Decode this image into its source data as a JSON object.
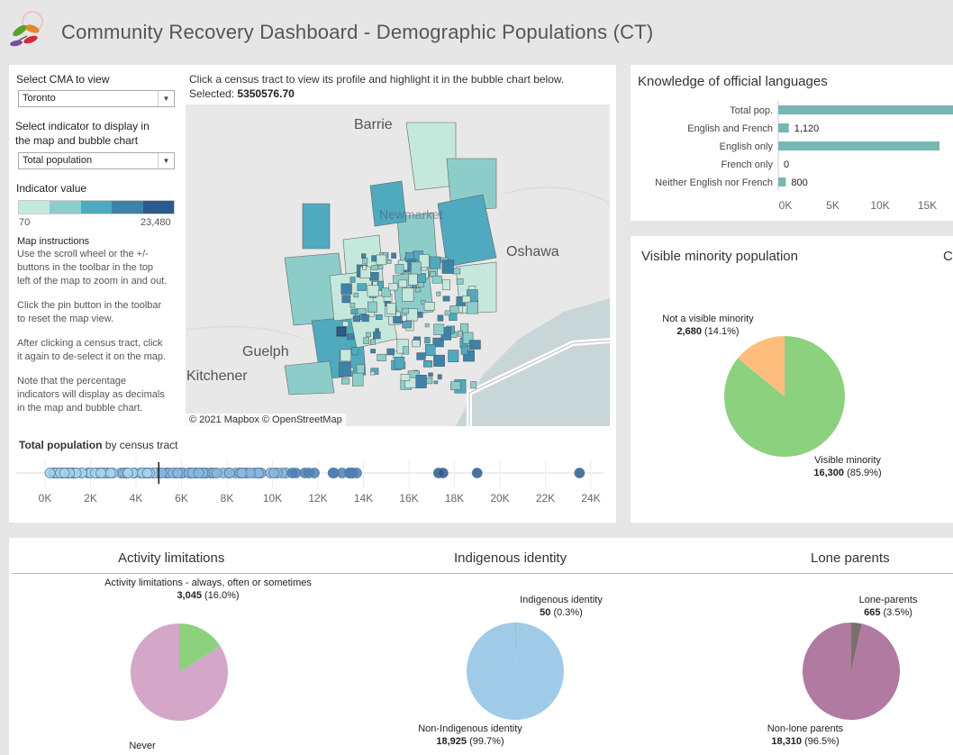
{
  "header": {
    "title": "Community Recovery Dashboard - Demographic Populations (CT)",
    "logo_icon": "leaf-logo-icon"
  },
  "controls": {
    "cma_label": "Select CMA to view",
    "cma_value": "Toronto",
    "indicator_label_1": "Select indicator to display in",
    "indicator_label_2": "the map and bubble chart",
    "indicator_value": "Total population",
    "legend_title": "Indicator value",
    "legend_min": "70",
    "legend_max": "23,480",
    "legend_colors": [
      "#c5e8dc",
      "#8ccdc9",
      "#4fa9bf",
      "#3e82aa",
      "#2d5a8c"
    ]
  },
  "instructions": {
    "title": "Map instructions",
    "lines_1": [
      "Use the scroll wheel or the +/-",
      "buttons in the toolbar in the top",
      "left of the map to zoom in and out."
    ],
    "lines_2": [
      "Click the pin button in the toolbar",
      "to reset the map view."
    ],
    "lines_3": [
      "After clicking a census tract, click",
      "it again to de-select it on the map."
    ],
    "lines_4": [
      "Note that the percentage",
      "indicators will display as decimals",
      "in the map and bubble chart."
    ]
  },
  "map": {
    "instruction": "Click a census tract to view its profile and highlight it in the bubble chart below.",
    "selected_label": "Selected:",
    "selected_value": "5350576.70",
    "cities": {
      "barrie": "Barrie",
      "newmarket": "Newmarket",
      "oshawa": "Oshawa",
      "guelph": "Guelph",
      "kitchener": "Kitchener"
    },
    "attribution": "© 2021 Mapbox © OpenStreetMap"
  },
  "bubble": {
    "title_bold": "Total population",
    "title_rest": " by census tract",
    "ticks": [
      "0K",
      "2K",
      "4K",
      "6K",
      "8K",
      "10K",
      "12K",
      "14K",
      "16K",
      "18K",
      "20K",
      "22K",
      "24K"
    ],
    "xlim": [
      0,
      24000
    ],
    "selected_value": 5000,
    "outliers": [
      17300,
      17500,
      19000,
      23500
    ]
  },
  "languages": {
    "title": "Knowledge of official languages",
    "categories": [
      "Total pop.",
      "English and French",
      "English only",
      "French only",
      "Neither English nor French"
    ],
    "values": [
      18975,
      1120,
      17055,
      0,
      800
    ],
    "labels": [
      "",
      "1,120",
      "",
      "0",
      "800"
    ],
    "ticks": [
      "0K",
      "5K",
      "10K",
      "15K"
    ],
    "bar_color": "#76b7b2"
  },
  "visible_minority": {
    "title": "Visible minority population",
    "cut_title": "Ca",
    "slices": [
      {
        "name": "Not a visible minority",
        "value": 2680,
        "value_text": "2,680",
        "pct": " (14.1%)",
        "color": "#ffbe7d"
      },
      {
        "name": "Visible minority",
        "value": 16300,
        "value_text": "16,300",
        "pct": " (85.9%)",
        "color": "#8cd17d"
      }
    ]
  },
  "activity": {
    "title": "Activity limitations",
    "slices": [
      {
        "name": "Activity limitations - always, often or sometimes",
        "value": 3045,
        "value_text": "3,045",
        "pct": " (16.0%)",
        "color": "#8cd17d"
      },
      {
        "name": "Never",
        "value": 15930,
        "value_text": "",
        "pct": "",
        "color": "#d4a6c8"
      }
    ]
  },
  "indigenous": {
    "title": "Indigenous identity",
    "slices": [
      {
        "name": "Indigenous identity",
        "value": 50,
        "value_text": "50",
        "pct": " (0.3%)",
        "color": "#f28e2b"
      },
      {
        "name": "Non-Indigenous identity",
        "value": 18925,
        "value_text": "18,925",
        "pct": " (99.7%)",
        "color": "#a0cbe8"
      }
    ]
  },
  "lone_parents": {
    "title": "Lone parents",
    "slices": [
      {
        "name": "Lone-parents",
        "value": 665,
        "value_text": "665",
        "pct": " (3.5%)",
        "color": "#79706e"
      },
      {
        "name": "Non-lone parents",
        "value": 18310,
        "value_text": "18,310",
        "pct": " (96.5%)",
        "color": "#b07aa1"
      }
    ]
  }
}
